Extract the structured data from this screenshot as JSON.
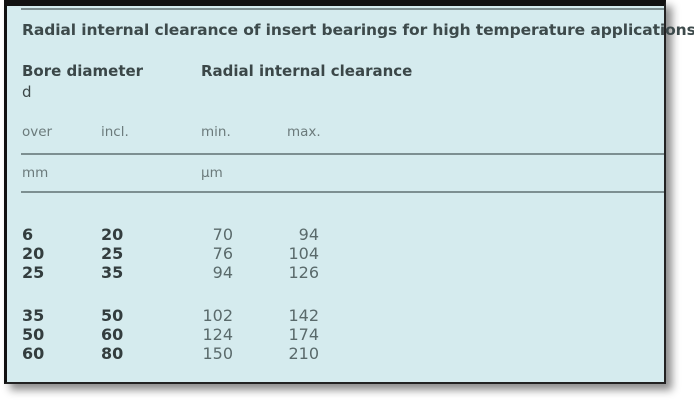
{
  "title": "Radial internal clearance of insert bearings for high temperature applications",
  "headers": {
    "bore_diameter": "Bore diameter",
    "bore_symbol": "d",
    "radial_clearance": "Radial internal clearance",
    "over": "over",
    "incl": "incl.",
    "min": "min.",
    "max": "max.",
    "unit_bore": "mm",
    "unit_clearance": "µm"
  },
  "rows": [
    {
      "over": "6",
      "incl": "20",
      "min": "70",
      "max": "94"
    },
    {
      "over": "20",
      "incl": "25",
      "min": "76",
      "max": "104"
    },
    {
      "over": "25",
      "incl": "35",
      "min": "94",
      "max": "126"
    },
    {
      "over": "35",
      "incl": "50",
      "min": "102",
      "max": "142"
    },
    {
      "over": "50",
      "incl": "60",
      "min": "124",
      "max": "174"
    },
    {
      "over": "60",
      "incl": "80",
      "min": "150",
      "max": "210"
    }
  ]
}
